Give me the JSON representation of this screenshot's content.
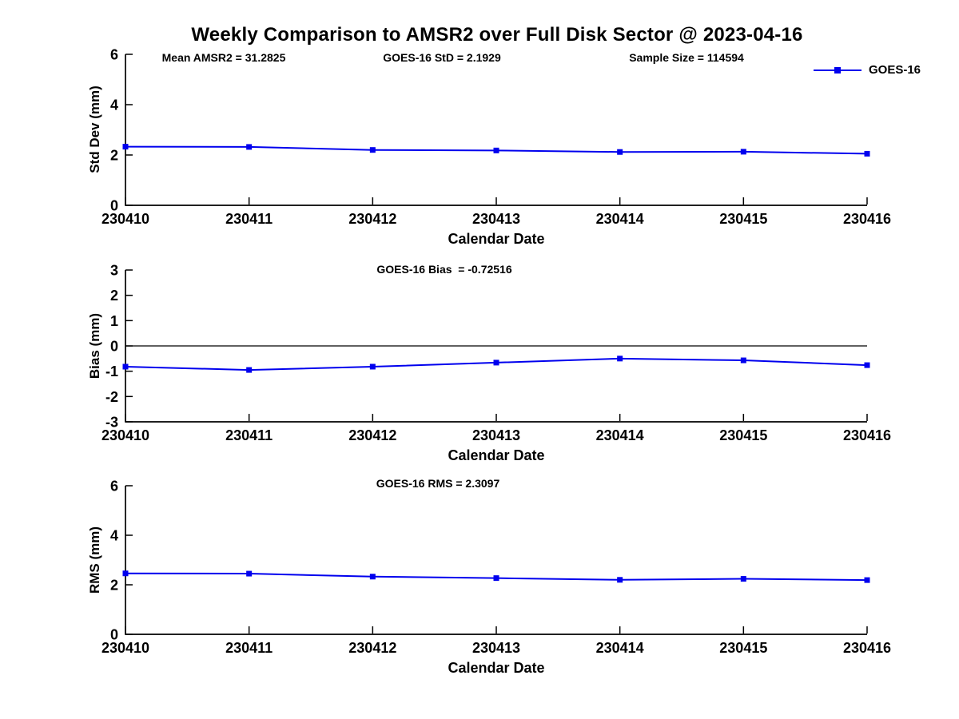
{
  "title": "Weekly Comparison to AMSR2 over Full Disk Sector @ 2023-04-16",
  "header_stats": {
    "mean_amsr2": "Mean AMSR2 = 31.2825",
    "goes16_std": "GOES-16 StD = 2.1929",
    "sample_size": "Sample Size = 114594"
  },
  "legend": {
    "label": "GOES-16",
    "position": "top-right"
  },
  "colors": {
    "series": "#0000EE",
    "axis": "#000000",
    "zero_line": "#000000"
  },
  "chart_data": [
    {
      "type": "line",
      "id": "stddev",
      "ylabel": "Std Dev (mm)",
      "xlabel": "Calendar Date",
      "categories": [
        "230410",
        "230411",
        "230412",
        "230413",
        "230414",
        "230415",
        "230416"
      ],
      "series": [
        {
          "name": "GOES-16",
          "values": [
            2.33,
            2.32,
            2.2,
            2.18,
            2.12,
            2.13,
            2.05
          ]
        }
      ],
      "ylim": [
        0,
        6
      ],
      "yticks": [
        0,
        2,
        4,
        6
      ],
      "grid": false,
      "marker": "square"
    },
    {
      "type": "line",
      "id": "bias",
      "annotation": "GOES-16 Bias  = -0.72516",
      "ylabel": "Bias (mm)",
      "xlabel": "Calendar Date",
      "categories": [
        "230410",
        "230411",
        "230412",
        "230413",
        "230414",
        "230415",
        "230416"
      ],
      "series": [
        {
          "name": "GOES-16",
          "values": [
            -0.82,
            -0.95,
            -0.82,
            -0.66,
            -0.5,
            -0.57,
            -0.76
          ]
        }
      ],
      "ylim": [
        -3,
        3
      ],
      "yticks": [
        -3,
        -2,
        -1,
        0,
        1,
        2,
        3
      ],
      "zero_line": true,
      "grid": false,
      "marker": "square"
    },
    {
      "type": "line",
      "id": "rms",
      "annotation": "GOES-16 RMS = 2.3097",
      "ylabel": "RMS (mm)",
      "xlabel": "Calendar Date",
      "categories": [
        "230410",
        "230411",
        "230412",
        "230413",
        "230414",
        "230415",
        "230416"
      ],
      "series": [
        {
          "name": "GOES-16",
          "values": [
            2.46,
            2.45,
            2.33,
            2.27,
            2.2,
            2.24,
            2.19
          ]
        }
      ],
      "ylim": [
        0,
        6
      ],
      "yticks": [
        0,
        2,
        4,
        6
      ],
      "grid": false,
      "marker": "square"
    }
  ]
}
